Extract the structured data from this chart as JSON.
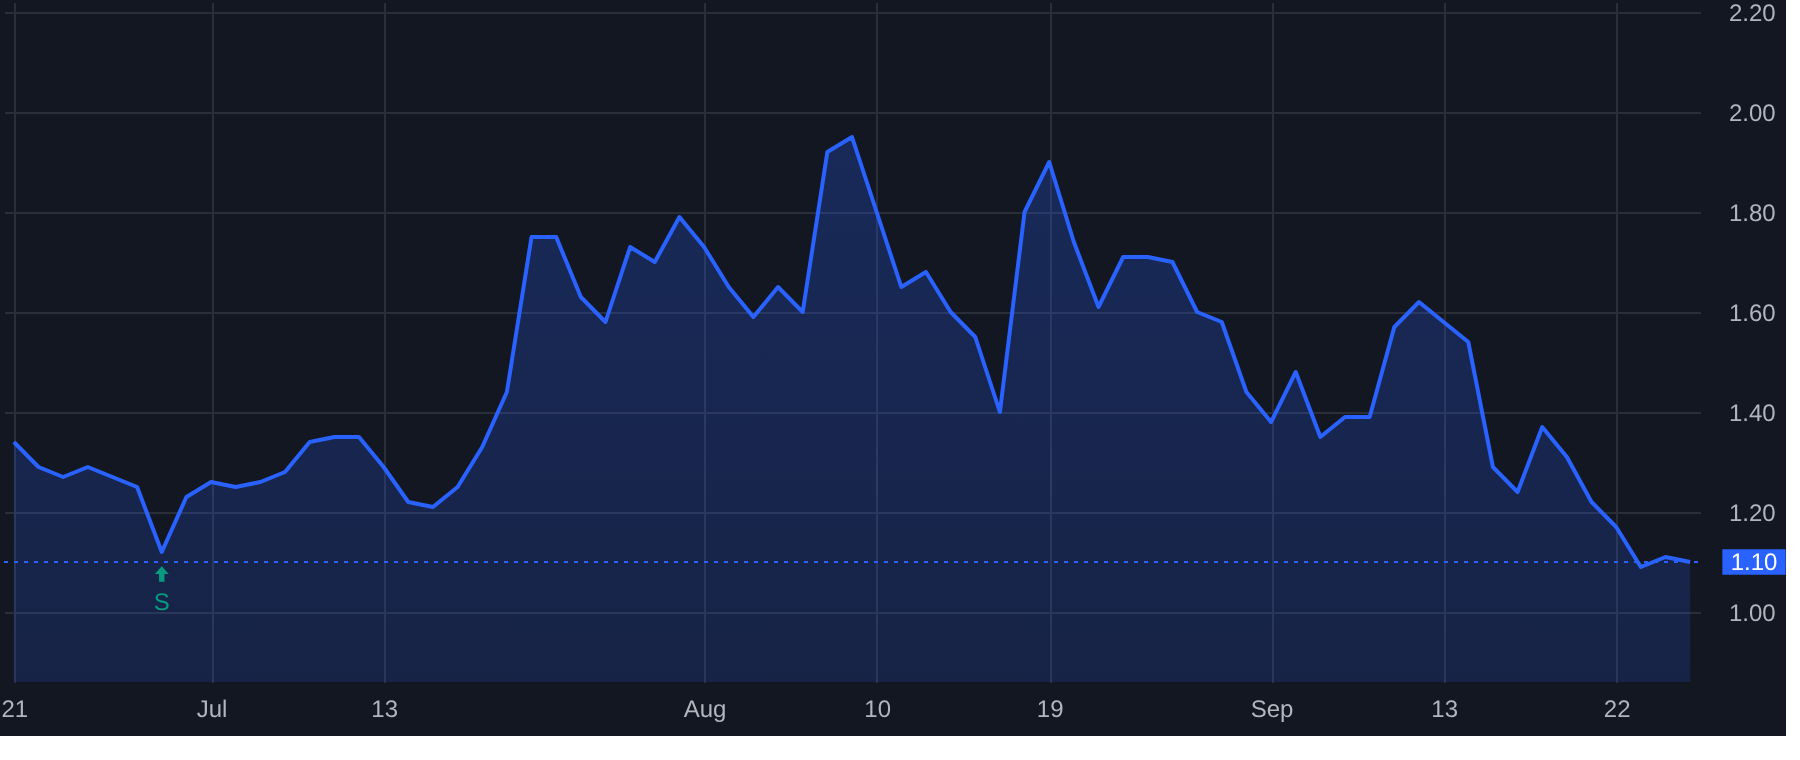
{
  "chart_data": {
    "type": "area",
    "categories": [
      "21",
      null,
      null,
      null,
      null,
      null,
      null,
      null,
      "Jul",
      null,
      null,
      null,
      null,
      null,
      null,
      "13",
      null,
      null,
      null,
      null,
      null,
      null,
      null,
      null,
      null,
      null,
      null,
      null,
      "Aug",
      null,
      null,
      null,
      null,
      null,
      null,
      "10",
      null,
      null,
      null,
      null,
      null,
      null,
      "19",
      null,
      null,
      null,
      null,
      null,
      null,
      null,
      null,
      "Sep",
      null,
      null,
      null,
      null,
      null,
      null,
      "13",
      null,
      null,
      null,
      null,
      null,
      null,
      "22",
      null,
      null,
      null
    ],
    "series": [
      {
        "color": "#2962ff",
        "values": [
          1.34,
          1.29,
          1.27,
          1.29,
          1.27,
          1.25,
          1.12,
          1.23,
          1.26,
          1.25,
          1.26,
          1.28,
          1.34,
          1.35,
          1.35,
          1.29,
          1.22,
          1.21,
          1.25,
          1.33,
          1.44,
          1.75,
          1.75,
          1.63,
          1.58,
          1.73,
          1.7,
          1.79,
          1.73,
          1.65,
          1.59,
          1.65,
          1.6,
          1.92,
          1.95,
          1.8,
          1.65,
          1.68,
          1.6,
          1.55,
          1.4,
          1.8,
          1.9,
          1.74,
          1.61,
          1.71,
          1.71,
          1.7,
          1.6,
          1.58,
          1.44,
          1.38,
          1.48,
          1.35,
          1.39,
          1.39,
          1.57,
          1.62,
          1.58,
          1.54,
          1.29,
          1.24,
          1.37,
          1.31,
          1.22,
          1.17,
          1.09,
          1.11,
          1.1
        ]
      }
    ],
    "ylim": [
      0.86,
      2.22
    ],
    "yticks": [
      {
        "value": 1.0,
        "label": "1.00"
      },
      {
        "value": 1.2,
        "label": "1.20"
      },
      {
        "value": 1.4,
        "label": "1.40"
      },
      {
        "value": 1.6,
        "label": "1.60"
      },
      {
        "value": 1.8,
        "label": "1.80"
      },
      {
        "value": 2.0,
        "label": "2.00"
      },
      {
        "value": 2.2,
        "label": "2.20"
      }
    ],
    "grid": true,
    "ref_lines": [
      {
        "axis": "y",
        "value": 1.1,
        "label": "1.10",
        "color": "#2962ff",
        "line_style": "dotted"
      }
    ],
    "annotations": [
      {
        "text": "S",
        "y": 1.12
      }
    ]
  }
}
